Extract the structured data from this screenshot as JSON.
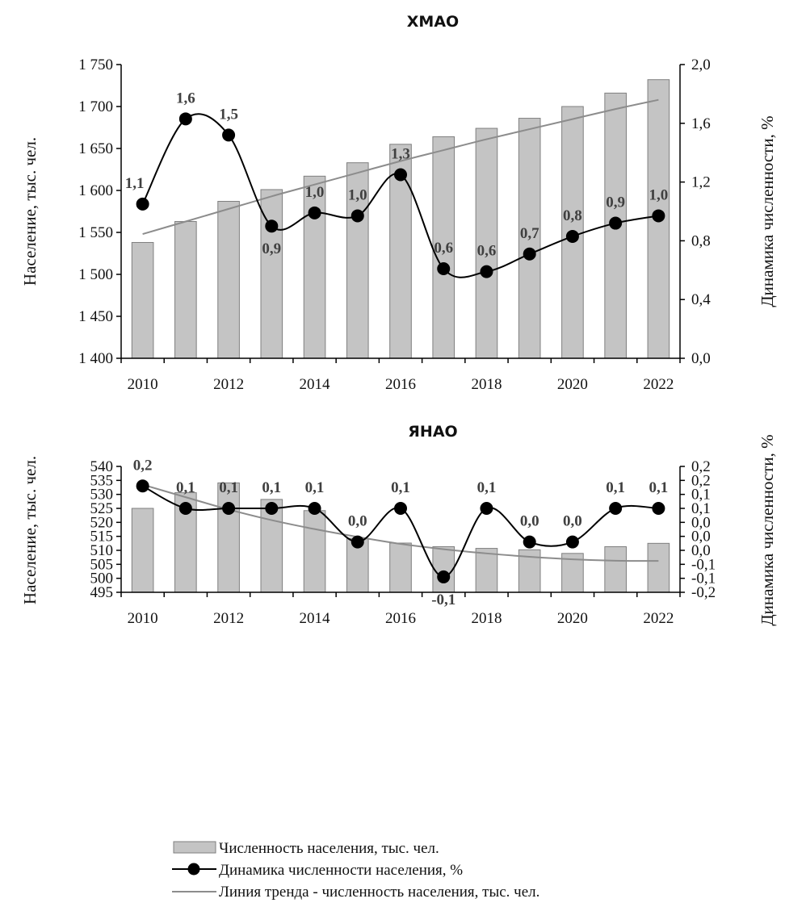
{
  "chart_data": [
    {
      "type": "bar",
      "title": "ХМАО",
      "ylabel": "Население, тыс. чел.",
      "y2label": "Динамика численности, %",
      "x": [
        2010,
        2011,
        2012,
        2013,
        2014,
        2015,
        2016,
        2017,
        2018,
        2019,
        2020,
        2021,
        2022
      ],
      "xticks": [
        "2010",
        "2012",
        "2014",
        "2016",
        "2018",
        "2020",
        "2022"
      ],
      "ylim": [
        1400,
        1750
      ],
      "yticks": [
        "1 400",
        "1 450",
        "1 500",
        "1 550",
        "1 600",
        "1 650",
        "1 700",
        "1 750"
      ],
      "y2lim": [
        0,
        2
      ],
      "y2ticks": [
        "0,0",
        "0,4",
        "0,8",
        "1,2",
        "1,6",
        "2,0"
      ],
      "series": [
        {
          "name": "Численность населения, тыс. чел.",
          "kind": "bar",
          "axis": "left",
          "values": [
            1538,
            1563,
            1587,
            1601,
            1617,
            1633,
            1655,
            1664,
            1674,
            1686,
            1700,
            1716,
            1732
          ]
        },
        {
          "name": "Динамика численности населения, %",
          "kind": "line",
          "axis": "right",
          "values": [
            1.05,
            1.63,
            1.52,
            0.9,
            0.99,
            0.97,
            1.25,
            0.61,
            0.59,
            0.71,
            0.83,
            0.92,
            0.97
          ],
          "labels": [
            "1,1",
            "1,6",
            "1,5",
            "0,9",
            "1,0",
            "1,0",
            "1,3",
            "0,6",
            "0,6",
            "0,7",
            "0,8",
            "0,9",
            "1,0"
          ]
        },
        {
          "name": "Линия тренда - численность населения, тыс. чел.",
          "kind": "trend",
          "axis": "left",
          "values": [
            1548,
            1563,
            1578,
            1593,
            1607,
            1621,
            1635,
            1648,
            1661,
            1673,
            1685,
            1697,
            1708
          ]
        }
      ]
    },
    {
      "type": "bar",
      "title": "ЯНАО",
      "ylabel": "Население, тыс. чел.",
      "y2label": "Динамика численности, %",
      "x": [
        2010,
        2011,
        2012,
        2013,
        2014,
        2015,
        2016,
        2017,
        2018,
        2019,
        2020,
        2021,
        2022
      ],
      "xticks": [
        "2010",
        "2012",
        "2014",
        "2016",
        "2018",
        "2020",
        "2022"
      ],
      "ylim": [
        495,
        540
      ],
      "yticks": [
        "495",
        "500",
        "505",
        "510",
        "515",
        "520",
        "525",
        "530",
        "535",
        "540"
      ],
      "y2lim": [
        -0.2,
        0.25
      ],
      "y2ticks": [
        "-0,2",
        "-0,1",
        "-0,1",
        "0,0",
        "0,0",
        "0,0",
        "0,1",
        "0,1",
        "0,2",
        "0,2"
      ],
      "series": [
        {
          "name": "Численность населения, тыс. чел.",
          "kind": "bar",
          "axis": "left",
          "values": [
            525.0,
            530.6,
            534.1,
            528.2,
            524.2,
            514.3,
            512.6,
            511.3,
            510.7,
            510.2,
            508.9,
            511.3,
            512.5
          ]
        },
        {
          "name": "Динамика численности населения, %",
          "kind": "line",
          "axis": "right",
          "values": [
            0.18,
            0.1,
            0.1,
            0.1,
            0.1,
            -0.02,
            0.1,
            -0.145,
            0.1,
            -0.02,
            -0.02,
            0.1,
            0.1
          ],
          "labels": [
            "0,2",
            "0,1",
            "0,1",
            "0,1",
            "0,1",
            "0,0",
            "0,1",
            "-0,1",
            "0,1",
            "0,0",
            "0,0",
            "0,1",
            "0,1"
          ]
        },
        {
          "name": "Линия тренда - численность населения, тыс. чел.",
          "kind": "trend",
          "axis": "left",
          "values": [
            533.5,
            529.0,
            524.6,
            520.8,
            517.6,
            514.8,
            512.3,
            510.4,
            508.9,
            507.7,
            506.8,
            506.3,
            506.2
          ]
        }
      ]
    }
  ],
  "legend": {
    "items": [
      "Численность населения, тыс. чел.",
      "Динамика численности населения, %",
      "Линия тренда - численность населения, тыс. чел."
    ]
  }
}
